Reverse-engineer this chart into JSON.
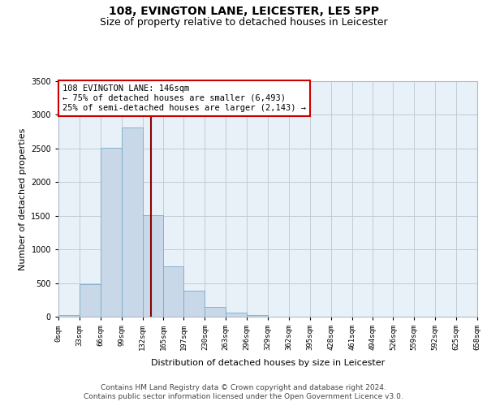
{
  "title": "108, EVINGTON LANE, LEICESTER, LE5 5PP",
  "subtitle": "Size of property relative to detached houses in Leicester",
  "xlabel": "Distribution of detached houses by size in Leicester",
  "ylabel": "Number of detached properties",
  "bar_edges": [
    0,
    33,
    66,
    99,
    132,
    165,
    197,
    230,
    263,
    296,
    329,
    362,
    395,
    428,
    461,
    494,
    526,
    559,
    592,
    625,
    658
  ],
  "bar_heights": [
    20,
    480,
    2510,
    2810,
    1510,
    750,
    390,
    145,
    65,
    30,
    0,
    0,
    0,
    0,
    0,
    0,
    0,
    0,
    0,
    0
  ],
  "bar_color": "#c8d8e8",
  "bar_edge_color": "#7aaac8",
  "vline_x": 146,
  "vline_color": "#8b0000",
  "annotation_line1": "108 EVINGTON LANE: 146sqm",
  "annotation_line2": "← 75% of detached houses are smaller (6,493)",
  "annotation_line3": "25% of semi-detached houses are larger (2,143) →",
  "annotation_box_facecolor": "white",
  "annotation_box_edgecolor": "#cc0000",
  "ylim": [
    0,
    3500
  ],
  "xlim": [
    0,
    658
  ],
  "tick_labels": [
    "0sqm",
    "33sqm",
    "66sqm",
    "99sqm",
    "132sqm",
    "165sqm",
    "197sqm",
    "230sqm",
    "263sqm",
    "296sqm",
    "329sqm",
    "362sqm",
    "395sqm",
    "428sqm",
    "461sqm",
    "494sqm",
    "526sqm",
    "559sqm",
    "592sqm",
    "625sqm",
    "658sqm"
  ],
  "tick_positions": [
    0,
    33,
    66,
    99,
    132,
    165,
    197,
    230,
    263,
    296,
    329,
    362,
    395,
    428,
    461,
    494,
    526,
    559,
    592,
    625,
    658
  ],
  "grid_color": "#c0ccd8",
  "background_color": "#e8f0f8",
  "footer_line1": "Contains HM Land Registry data © Crown copyright and database right 2024.",
  "footer_line2": "Contains public sector information licensed under the Open Government Licence v3.0.",
  "title_fontsize": 10,
  "subtitle_fontsize": 9,
  "axis_label_fontsize": 8,
  "tick_fontsize": 6.5,
  "annotation_fontsize": 7.5,
  "footer_fontsize": 6.5
}
